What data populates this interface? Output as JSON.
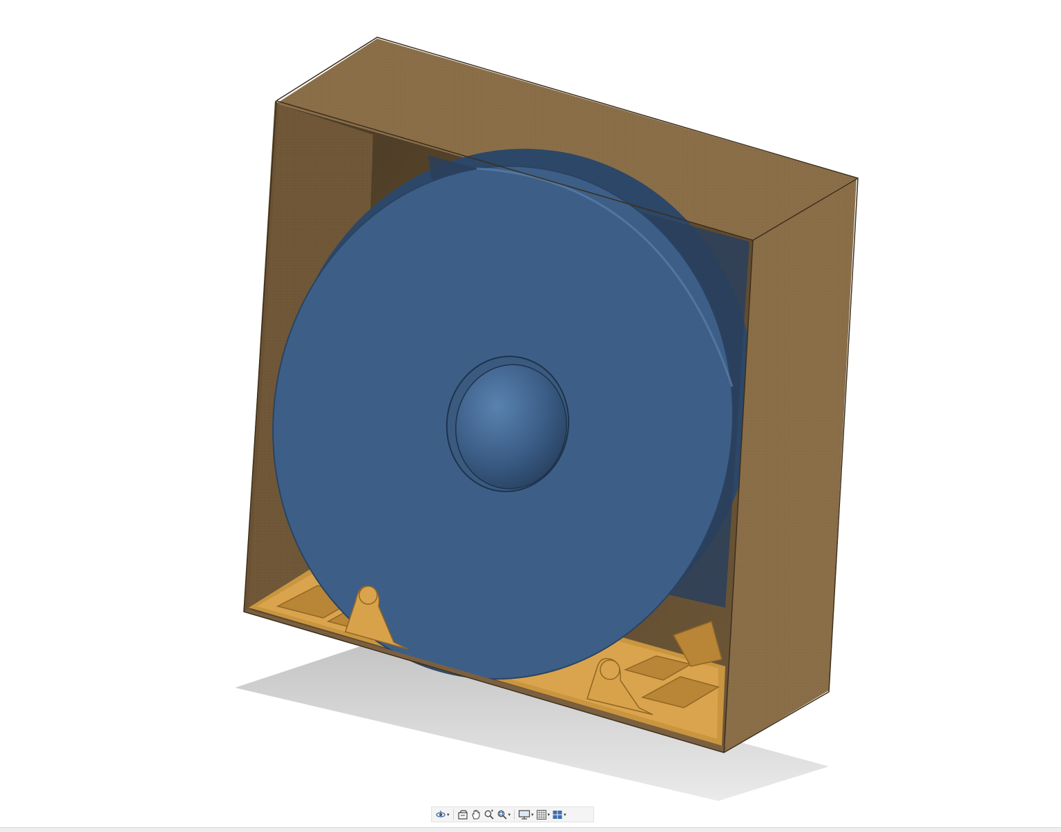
{
  "viewport": {
    "model": {
      "enclosure_color": "#8a6e48",
      "enclosure_dark": "#6c5535",
      "disc_color": "#3d5f87",
      "disc_dark": "#2a4362",
      "stand_color": "#d7a24a",
      "background": "#ffffff",
      "shadow": "#c9c9c9"
    }
  },
  "toolbar": {
    "items": [
      {
        "name": "orbit-icon",
        "has_menu": true
      },
      {
        "name": "look-at-icon",
        "has_menu": false
      },
      {
        "name": "pan-icon",
        "has_menu": false
      },
      {
        "name": "zoom-icon",
        "has_menu": false
      },
      {
        "name": "fit-icon",
        "has_menu": true
      },
      {
        "name": "display-settings-icon",
        "has_menu": true
      },
      {
        "name": "grid-snaps-icon",
        "has_menu": true
      },
      {
        "name": "viewports-icon",
        "has_menu": true
      }
    ],
    "caret": "▾"
  }
}
